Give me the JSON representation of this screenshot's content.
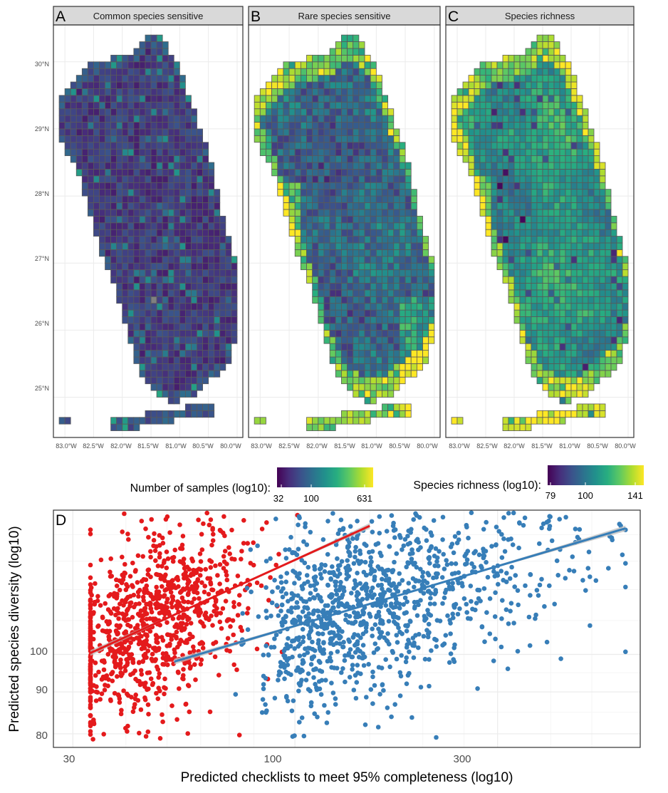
{
  "chart_data": [
    {
      "type": "heatmap",
      "panels": [
        {
          "letter": "A",
          "title": "Common species sensitive",
          "metric": "samples",
          "bias": 0.22
        },
        {
          "letter": "B",
          "title": "Rare species sensitive",
          "metric": "samples",
          "bias": 0.55
        },
        {
          "letter": "C",
          "title": "Species richness",
          "metric": "richness",
          "bias": 0.5
        }
      ],
      "y_ticks": [
        "30°N",
        "29°N",
        "28°N",
        "27°N",
        "26°N",
        "25°N"
      ],
      "y_tick_values": [
        30,
        29,
        28,
        27,
        26,
        25
      ],
      "x_ticks": [
        "83.0°W",
        "82.5°W",
        "82.0°W",
        "81.5°W",
        "81.0°W",
        "80.5°W",
        "80.0°W"
      ],
      "x_tick_values": [
        -83.0,
        -82.5,
        -82.0,
        -81.5,
        -81.0,
        -80.5,
        -80.0
      ],
      "xlim": [
        -83.2,
        -79.9
      ],
      "ylim": [
        24.4,
        30.55
      ],
      "grid": true,
      "cell_size_deg": 0.1,
      "legends": [
        {
          "title": "Number of samples (log10):",
          "ticks": [
            "32",
            "100",
            "631"
          ],
          "tick_values": [
            32,
            100,
            631
          ],
          "colormap": "viridis"
        },
        {
          "title": "Species richness (log10):",
          "ticks": [
            "79",
            "100",
            "141"
          ],
          "tick_values": [
            79,
            100,
            141
          ],
          "colormap": "viridis"
        }
      ]
    },
    {
      "type": "scatter",
      "panel_letter": "D",
      "xlabel": "Predicted checklists to meet 95% completeness (log10)",
      "ylabel": "Predicted species diversity (log10)",
      "x_scale": "log",
      "y_scale": "log",
      "xlim": [
        27,
        650
      ],
      "ylim": [
        77,
        150
      ],
      "x_ticks": [
        "30",
        "100",
        "300"
      ],
      "x_tick_values": [
        30,
        100,
        300
      ],
      "y_ticks": [
        "80",
        "90",
        "100"
      ],
      "y_tick_values": [
        80,
        90,
        100
      ],
      "grid": true,
      "series": [
        {
          "color": "#e41a1c",
          "n_points": 950,
          "x_range": [
            33,
            150
          ],
          "x_center": 46,
          "trend": {
            "x": [
              33,
              150
            ],
            "y": [
              100.4,
              143.5
            ]
          }
        },
        {
          "color": "#377eb8",
          "n_points": 1150,
          "x_range": [
            52,
            600
          ],
          "x_center": 110,
          "trend": {
            "x": [
              52,
              600
            ],
            "y": [
              98,
              142.5
            ]
          }
        }
      ]
    }
  ],
  "colors": {
    "panel_background": "#ffffff",
    "panel_border": "#333333",
    "strip_fill": "#d9d9d9",
    "grid_major": "#ebebeb",
    "grid_minor": "#f5f5f5",
    "tile_outline": "#595959",
    "missing_tile": "#808080",
    "trend_band": "#bdbdbd"
  }
}
